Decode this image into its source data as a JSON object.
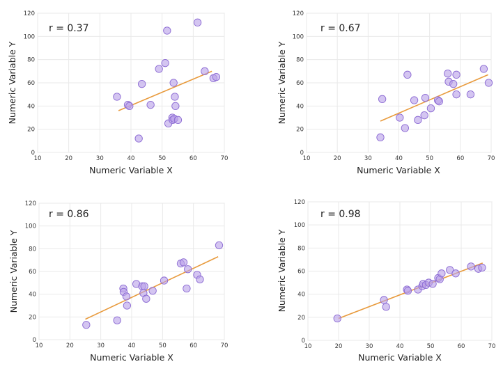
{
  "chart_data": [
    {
      "type": "scatter",
      "annotation": "r = 0.37",
      "xlabel": "Numeric Variable X",
      "ylabel": "Numeric Variable Y",
      "xlim": [
        10,
        70
      ],
      "ylim": [
        0,
        120
      ],
      "xticks": [
        10,
        20,
        30,
        40,
        50,
        60,
        70
      ],
      "yticks": [
        0,
        20,
        40,
        60,
        80,
        100,
        120
      ],
      "grid": true,
      "x": [
        35.5,
        39.0,
        39.5,
        42.5,
        43.5,
        46.3,
        49.0,
        51.0,
        51.6,
        52.0,
        53.3,
        53.4,
        53.7,
        53.9,
        54.1,
        54.3,
        55.1,
        61.4,
        63.7,
        66.5,
        67.4
      ],
      "y": [
        48,
        41,
        40,
        12,
        59,
        41,
        72,
        77,
        105,
        25,
        30,
        28,
        60,
        29,
        48,
        40,
        28,
        112,
        70,
        64,
        65
      ],
      "trend": {
        "x": [
          36,
          66
        ],
        "y": [
          36,
          70
        ]
      }
    },
    {
      "type": "scatter",
      "annotation": "r = 0.67",
      "xlabel": "Numeric Variable X",
      "ylabel": "Numeric Variable Y",
      "xlim": [
        10,
        70
      ],
      "ylim": [
        0,
        120
      ],
      "xticks": [
        10,
        20,
        30,
        40,
        50,
        60,
        70
      ],
      "yticks": [
        0,
        20,
        40,
        60,
        80,
        100,
        120
      ],
      "grid": true,
      "x": [
        34.0,
        34.6,
        40.3,
        42.0,
        42.8,
        45.0,
        46.2,
        48.3,
        48.6,
        50.4,
        52.7,
        53.1,
        55.9,
        56.2,
        57.7,
        58.7,
        58.7,
        63.3,
        67.6,
        69.2
      ],
      "y": [
        13,
        46,
        30,
        21,
        67,
        45,
        28,
        32,
        47,
        38,
        45,
        44,
        68,
        61,
        59,
        50,
        67,
        50,
        72,
        60
      ],
      "trend": {
        "x": [
          34,
          69
        ],
        "y": [
          27,
          67
        ]
      }
    },
    {
      "type": "scatter",
      "annotation": "r = 0.86",
      "xlabel": "Numeric Variable X",
      "ylabel": "Numeric Variable Y",
      "xlim": [
        10,
        70
      ],
      "ylim": [
        0,
        120
      ],
      "xticks": [
        10,
        20,
        30,
        40,
        50,
        60,
        70
      ],
      "yticks": [
        0,
        20,
        40,
        60,
        80,
        100,
        120
      ],
      "grid": true,
      "x": [
        25.3,
        35.3,
        37.3,
        37.4,
        38.3,
        38.5,
        41.5,
        43.4,
        43.8,
        44.1,
        44.7,
        46.8,
        50.5,
        55.9,
        56.8,
        57.8,
        58.2,
        61.2,
        62.1,
        68.3
      ],
      "y": [
        13,
        17,
        45,
        42,
        38,
        30,
        49,
        47,
        41,
        47,
        36,
        43,
        52,
        67,
        68,
        45,
        62,
        57,
        53,
        83
      ],
      "trend": {
        "x": [
          25,
          68
        ],
        "y": [
          18,
          73
        ]
      }
    },
    {
      "type": "scatter",
      "annotation": "r = 0.98",
      "xlabel": "Numeric Variable X",
      "ylabel": "Numeric Variable Y",
      "xlim": [
        10,
        70
      ],
      "ylim": [
        0,
        120
      ],
      "xticks": [
        10,
        20,
        30,
        40,
        50,
        60,
        70
      ],
      "yticks": [
        0,
        20,
        40,
        60,
        80,
        100,
        120
      ],
      "grid": true,
      "x": [
        19.6,
        34.8,
        35.5,
        42.3,
        42.6,
        45.9,
        47.3,
        47.6,
        48.5,
        49.4,
        50.7,
        52.5,
        53.0,
        53.6,
        56.3,
        58.2,
        63.2,
        65.6,
        66.8
      ],
      "y": [
        19,
        35,
        29,
        44,
        43,
        44,
        47,
        49,
        48,
        50,
        49,
        54,
        53,
        58,
        61,
        58,
        64,
        62,
        63
      ],
      "trend": {
        "x": [
          20,
          67
        ],
        "y": [
          19,
          67
        ]
      }
    }
  ]
}
